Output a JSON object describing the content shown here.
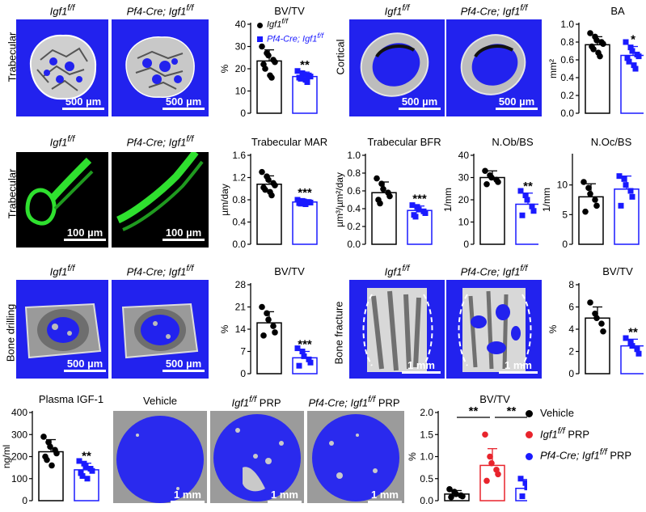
{
  "rows": {
    "row1": "Trabecular",
    "row1b": "Cortical",
    "row2": "Trabecular",
    "row3a": "Bone drilling",
    "row3b": "Bone fracture"
  },
  "groups": {
    "ctrl": "Igf1",
    "ctrl_sup": "f/f",
    "ko": "Pf4-Cre; Igf1",
    "ko_sup": "f/f",
    "vehicle": "Vehicle",
    "prp": "PRP"
  },
  "scales": {
    "um500": "500 µm",
    "um100": "100 µm",
    "mm1": "1 mm"
  },
  "colors": {
    "panel_blue": "#2222ee",
    "ctrl": "#000000",
    "ko": "#1a1aff",
    "red": "#e8242c",
    "fluor_green": "#2fe02f"
  },
  "legend": {
    "row1_ctrl": "Igf1",
    "row1_ctrl_sup": "f/f",
    "row1_ko": "Pf4-Cre; Igf1",
    "row1_ko_sup": "f/f",
    "prp_vehicle": "Vehicle",
    "prp_ctrl": "Igf1",
    "prp_ctrl_sup": "f/f",
    "prp_ctrl_tail": " PRP",
    "prp_ko": "Pf4-Cre; Igf1",
    "prp_ko_sup": "f/f",
    "prp_ko_tail": " PRP"
  },
  "chart_data": [
    {
      "id": "c1",
      "type": "bar",
      "title": "BV/TV",
      "ylabel": "%",
      "ylim": [
        0,
        40
      ],
      "yticks": [
        0,
        10,
        20,
        30,
        40
      ],
      "groups": [
        {
          "mean": 23.5,
          "sd": 5,
          "points": [
            30,
            27,
            26,
            24,
            23,
            22,
            20,
            17,
            16
          ],
          "color": "#000000",
          "marker": "circle"
        },
        {
          "mean": 16.5,
          "sd": 2,
          "points": [
            19,
            18,
            17.5,
            17,
            16.5,
            16,
            15.5,
            15,
            14
          ],
          "color": "#1a1aff",
          "marker": "square",
          "sig": "**"
        }
      ]
    },
    {
      "id": "c2",
      "type": "bar",
      "title": "BA",
      "ylabel": "mm²",
      "ylim": [
        0,
        1.0
      ],
      "yticks": [
        0,
        0.2,
        0.4,
        0.6,
        0.8,
        1.0
      ],
      "groups": [
        {
          "mean": 0.77,
          "sd": 0.09,
          "points": [
            0.9,
            0.86,
            0.82,
            0.8,
            0.78,
            0.75,
            0.72,
            0.68,
            0.64
          ],
          "color": "#000000",
          "marker": "circle"
        },
        {
          "mean": 0.65,
          "sd": 0.1,
          "points": [
            0.8,
            0.74,
            0.7,
            0.66,
            0.64,
            0.62,
            0.58,
            0.54,
            0.5
          ],
          "color": "#1a1aff",
          "marker": "square",
          "sig": "*"
        }
      ]
    },
    {
      "id": "c3",
      "type": "bar",
      "title": "Trabecular  MAR",
      "ylabel": "µm/day",
      "ylim": [
        0,
        1.6
      ],
      "yticks": [
        0,
        0.4,
        0.8,
        1.2,
        1.6
      ],
      "groups": [
        {
          "mean": 1.08,
          "sd": 0.15,
          "points": [
            1.3,
            1.22,
            1.16,
            1.1,
            1.06,
            1.02,
            0.98,
            0.94,
            0.88
          ],
          "color": "#000000",
          "marker": "circle"
        },
        {
          "mean": 0.76,
          "sd": 0.04,
          "points": [
            0.8,
            0.78,
            0.77,
            0.76,
            0.75,
            0.74,
            0.73,
            0.72
          ],
          "color": "#1a1aff",
          "marker": "square",
          "sig": "***"
        }
      ]
    },
    {
      "id": "c4",
      "type": "bar",
      "title": "Trabecular  BFR",
      "ylabel": "µm³/µm²/day",
      "ylim": [
        0,
        1.0
      ],
      "yticks": [
        0,
        0.2,
        0.4,
        0.6,
        0.8,
        1.0
      ],
      "groups": [
        {
          "mean": 0.58,
          "sd": 0.12,
          "points": [
            0.74,
            0.68,
            0.62,
            0.58,
            0.54,
            0.5,
            0.46
          ],
          "color": "#000000",
          "marker": "circle"
        },
        {
          "mean": 0.38,
          "sd": 0.05,
          "points": [
            0.44,
            0.42,
            0.39,
            0.37,
            0.35,
            0.33,
            0.31
          ],
          "color": "#1a1aff",
          "marker": "square",
          "sig": "***"
        }
      ]
    },
    {
      "id": "c5",
      "type": "bar",
      "title": "N.Ob/BS",
      "ylabel": "1/mm",
      "ylim": [
        0,
        40
      ],
      "yticks": [
        0,
        10,
        20,
        30,
        40
      ],
      "groups": [
        {
          "mean": 30,
          "sd": 3,
          "points": [
            33,
            31,
            30,
            29,
            28,
            27
          ],
          "color": "#000000",
          "marker": "circle"
        },
        {
          "mean": 18,
          "sd": 5,
          "points": [
            24,
            22,
            20,
            17,
            15,
            13
          ],
          "color": "#1a1aff",
          "marker": "square",
          "sig": "**"
        }
      ]
    },
    {
      "id": "c6",
      "type": "bar",
      "title": "N.Oc/BS",
      "ylabel": "1/mm",
      "ylim": [
        0,
        15
      ],
      "yticks": [
        0,
        5,
        10
      ],
      "groups": [
        {
          "mean": 8,
          "sd": 2.2,
          "points": [
            10.5,
            9.5,
            8.5,
            7.5,
            6.5,
            5.5
          ],
          "color": "#000000",
          "marker": "circle"
        },
        {
          "mean": 9.3,
          "sd": 2.2,
          "points": [
            11.5,
            11,
            10,
            9,
            8,
            6.5
          ],
          "color": "#1a1aff",
          "marker": "square"
        }
      ]
    },
    {
      "id": "c7",
      "type": "bar",
      "title": "BV/TV",
      "ylabel": "%",
      "ylim": [
        0,
        28
      ],
      "yticks": [
        0,
        7,
        14,
        21,
        28
      ],
      "groups": [
        {
          "mean": 16,
          "sd": 3.5,
          "points": [
            21,
            19,
            17,
            15,
            13,
            12
          ],
          "color": "#000000",
          "marker": "circle"
        },
        {
          "mean": 5,
          "sd": 2,
          "points": [
            8,
            7,
            5.5,
            4.5,
            3.5,
            2.5
          ],
          "color": "#1a1aff",
          "marker": "square",
          "sig": "***"
        }
      ]
    },
    {
      "id": "c8",
      "type": "bar",
      "title": "BV/TV",
      "ylabel": "%",
      "ylim": [
        0,
        8
      ],
      "yticks": [
        0,
        2,
        4,
        6,
        8
      ],
      "groups": [
        {
          "mean": 5,
          "sd": 1,
          "points": [
            6.4,
            5.4,
            5,
            4.5,
            3.8
          ],
          "color": "#000000",
          "marker": "circle"
        },
        {
          "mean": 2.5,
          "sd": 0.6,
          "points": [
            3.2,
            2.8,
            2.5,
            2.2,
            1.8
          ],
          "color": "#1a1aff",
          "marker": "square",
          "sig": "**"
        }
      ]
    },
    {
      "id": "c9",
      "type": "bar",
      "title": "Plasma IGF-1",
      "ylabel": "ng/ml",
      "ylim": [
        0,
        400
      ],
      "yticks": [
        0,
        100,
        200,
        300,
        400
      ],
      "groups": [
        {
          "mean": 222,
          "sd": 55,
          "points": [
            290,
            265,
            245,
            230,
            215,
            200,
            185,
            160
          ],
          "color": "#000000",
          "marker": "circle"
        },
        {
          "mean": 140,
          "sd": 30,
          "points": [
            180,
            168,
            155,
            145,
            135,
            125,
            112,
            100
          ],
          "color": "#1a1aff",
          "marker": "square",
          "sig": "**"
        }
      ]
    },
    {
      "id": "c10",
      "type": "bar",
      "title": "BV/TV",
      "ylabel": "%",
      "ylim": [
        0,
        2.0
      ],
      "yticks": [
        0,
        0.5,
        1.0,
        1.5,
        2.0
      ],
      "groups": [
        {
          "mean": 0.15,
          "sd": 0.08,
          "points": [
            0.26,
            0.2,
            0.15,
            0.12,
            0.1,
            0.08
          ],
          "color": "#000000",
          "marker": "circle"
        },
        {
          "mean": 0.8,
          "sd": 0.38,
          "points": [
            1.5,
            1.0,
            0.85,
            0.7,
            0.6,
            0.45
          ],
          "color": "#e8242c",
          "marker": "circle"
        },
        {
          "mean": 0.28,
          "sd": 0.2,
          "points": [
            0.5,
            0.4,
            0.3,
            0.22,
            0.15,
            0.1
          ],
          "color": "#1a1aff",
          "marker": "square"
        }
      ],
      "comparisons": [
        {
          "from": 0,
          "to": 1,
          "label": "**"
        },
        {
          "from": 1,
          "to": 2,
          "label": "**"
        }
      ]
    }
  ]
}
